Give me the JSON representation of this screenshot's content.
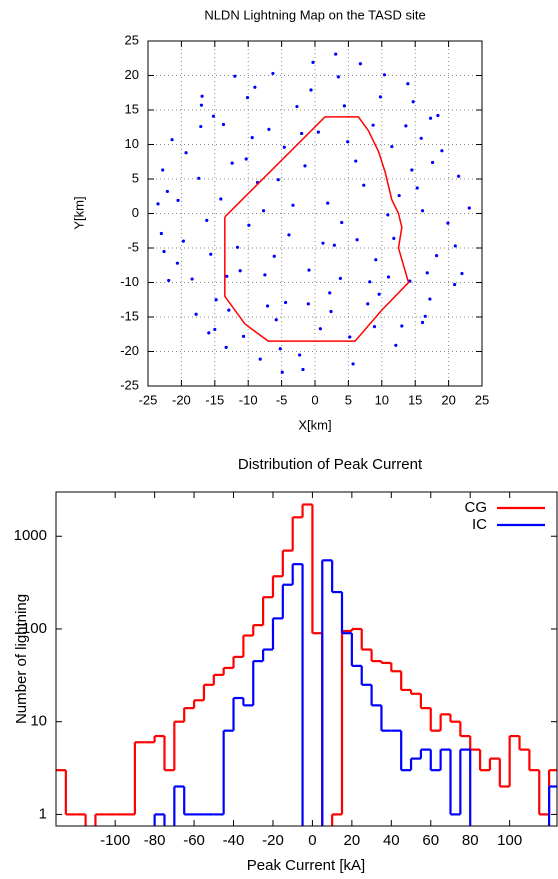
{
  "chart_data": [
    {
      "type": "scatter",
      "title": "NLDN Lightning Map on the TASD site",
      "x_label": "X[km]",
      "y_label": "Y[km]",
      "xlim": [
        -25,
        25
      ],
      "ylim": [
        -25,
        25
      ],
      "xticks": [
        -25,
        -20,
        -15,
        -10,
        -5,
        0,
        5,
        10,
        15,
        20,
        25
      ],
      "yticks": [
        -25,
        -20,
        -15,
        -10,
        -5,
        0,
        5,
        10,
        15,
        20,
        25
      ],
      "grid": true,
      "series": [
        {
          "mode": "points",
          "color": "#0000ff",
          "x": [
            -22.1,
            -18.4,
            -15.2,
            -10.7,
            -6.3,
            -1.8,
            3.5,
            8.9,
            13.6,
            18.2,
            21.5,
            17.3,
            12.1,
            6.8,
            1.2,
            -4.6,
            -9.9,
            -14.8,
            -19.3,
            -23.0,
            -20.6,
            -16.9,
            -12.4,
            -7.5,
            -2.7,
            2.4,
            7.3,
            11.8,
            16.5,
            20.9,
            23.1,
            19.0,
            14.7,
            9.6,
            4.9,
            -0.3,
            -5.2,
            -10.1,
            -15.6,
            -21.4,
            -17.8,
            -13.3,
            -8.6,
            -3.9,
            0.8,
            5.7,
            10.4,
            15.3,
            19.9,
            -11.2,
            -6.9,
            -1.5,
            3.8,
            9.1,
            14.2,
            17.6,
            -19.7,
            -22.8,
            -14.1,
            -4.4,
            1.9,
            6.3,
            11.5,
            16.8,
            21.0,
            -8.2,
            -12.9,
            -17.1,
            -20.5,
            -2.3,
            4.4,
            8.7,
            13.0,
            -0.9,
            -5.8,
            -9.4,
            -13.7,
            -16.2,
            -0.6,
            6.1,
            10.9,
            15.9,
            18.4,
            -3.3,
            -7.7,
            -11.6,
            -15.9,
            2.9,
            7.9,
            12.6,
            17.2,
            22.0,
            -1.0,
            -6.1,
            -10.3,
            -15.0,
            -21.9,
            0.5,
            5.2,
            9.8,
            14.5,
            16.1,
            -4.9,
            -9.0,
            -13.2,
            -17.4,
            -22.6,
            3.1,
            8.2,
            -2.0,
            -12.0,
            -7.1,
            2.2,
            11.0,
            16.1,
            -17.0,
            -23.5,
            4.0,
            -5.5,
            13.9
          ],
          "y": [
            3.2,
            -9.5,
            14.1,
            -17.8,
            20.3,
            -22.6,
            19.8,
            -16.4,
            12.7,
            -6.1,
            5.4,
            13.8,
            -19.1,
            21.7,
            -4.3,
            9.6,
            -1.7,
            -12.5,
            8.8,
            -2.9,
            -7.2,
            17.0,
            7.3,
            -8.9,
            15.5,
            -14.2,
            4.1,
            -3.6,
            -14.9,
            -10.3,
            0.8,
            9.1,
            16.2,
            -11.7,
            10.4,
            21.9,
            -19.6,
            16.8,
            -5.9,
            10.7,
            -14.6,
            -19.4,
            4.5,
            -3.1,
            -16.7,
            -21.8,
            20.1,
            3.7,
            -1.4,
            -8.3,
            12.2,
            6.9,
            -9.4,
            -6.7,
            -9.8,
            7.4,
            -4.0,
            6.3,
            2.1,
            -12.9,
            1.5,
            -3.8,
            9.7,
            -8.6,
            -4.7,
            -21.1,
            -14.0,
            12.6,
            1.9,
            -20.5,
            15.6,
            12.8,
            -16.3,
            -8.2,
            -15.4,
            11.0,
            12.9,
            -1.0,
            17.9,
            7.6,
            -0.2,
            10.9,
            14.2,
            1.2,
            0.4,
            -4.9,
            -17.3,
            -4.6,
            -13.1,
            2.6,
            -12.4,
            -8.7,
            -13.1,
            -6.2,
            7.9,
            -16.8,
            -9.7,
            11.8,
            -17.9,
            16.9,
            6.3,
            -15.8,
            -23.0,
            18.3,
            -9.1,
            5.1,
            -5.5,
            23.1,
            -9.9,
            11.6,
            19.9,
            -13.4,
            -11.5,
            -9.2,
            0.4,
            15.7,
            1.4,
            -1.3,
            4.9,
            18.8
          ]
        },
        {
          "mode": "line",
          "color": "#ff0000",
          "x": [
            -13.5,
            -13.5,
            -10.5,
            -7,
            6,
            10,
            14,
            12.5,
            13,
            12.5,
            11.5,
            11,
            10.5,
            9.5,
            8,
            6.5,
            1.5,
            -13.5
          ],
          "y": [
            -0.5,
            -12,
            -16,
            -18.5,
            -18.5,
            -14,
            -10,
            -5,
            -2,
            0,
            2,
            4,
            6,
            9,
            12,
            14,
            14,
            -0.5
          ]
        }
      ]
    },
    {
      "type": "histogram",
      "title": "Distribution of Peak Current",
      "x_label": "Peak Current [kA]",
      "y_label": "Number of lightning",
      "xlim": [
        -130,
        124
      ],
      "ylim": [
        0.75,
        3000
      ],
      "yscale": "log",
      "xticks": [
        -100,
        -80,
        -60,
        -40,
        -20,
        0,
        20,
        40,
        60,
        80,
        100
      ],
      "yticks": [
        1,
        10,
        100,
        1000
      ],
      "legend": "upper right",
      "bins": [
        -130,
        -125,
        -120,
        -115,
        -110,
        -105,
        -100,
        -95,
        -90,
        -85,
        -80,
        -75,
        -70,
        -65,
        -60,
        -55,
        -50,
        -45,
        -40,
        -35,
        -30,
        -25,
        -20,
        -15,
        -10,
        -5,
        0,
        5,
        10,
        15,
        20,
        25,
        30,
        35,
        40,
        45,
        50,
        55,
        60,
        65,
        70,
        75,
        80,
        85,
        90,
        95,
        100,
        105,
        110,
        115,
        120,
        125
      ],
      "series": [
        {
          "name": "CG",
          "color": "#ff0000",
          "values": [
            3,
            1,
            1,
            0,
            1,
            1,
            1,
            1,
            6,
            6,
            7,
            3,
            10,
            14,
            17,
            25,
            32,
            38,
            50,
            85,
            110,
            220,
            370,
            700,
            1600,
            2200,
            90,
            0,
            1,
            95,
            100,
            60,
            45,
            43,
            35,
            22,
            20,
            14,
            8,
            12,
            10,
            7,
            5,
            3,
            4,
            2,
            7,
            5,
            3,
            1,
            3
          ]
        },
        {
          "name": "IC",
          "color": "#0000ff",
          "values": [
            0,
            0,
            0,
            0,
            0,
            0,
            0,
            0,
            0,
            0,
            1,
            0,
            2,
            1,
            1,
            1,
            1,
            8,
            18,
            15,
            45,
            60,
            130,
            300,
            500,
            0,
            0,
            550,
            250,
            90,
            40,
            25,
            15,
            8,
            8,
            3,
            4,
            5,
            3,
            5,
            1,
            5,
            0,
            0,
            0,
            0,
            0,
            0,
            0,
            0,
            2
          ]
        }
      ]
    }
  ]
}
